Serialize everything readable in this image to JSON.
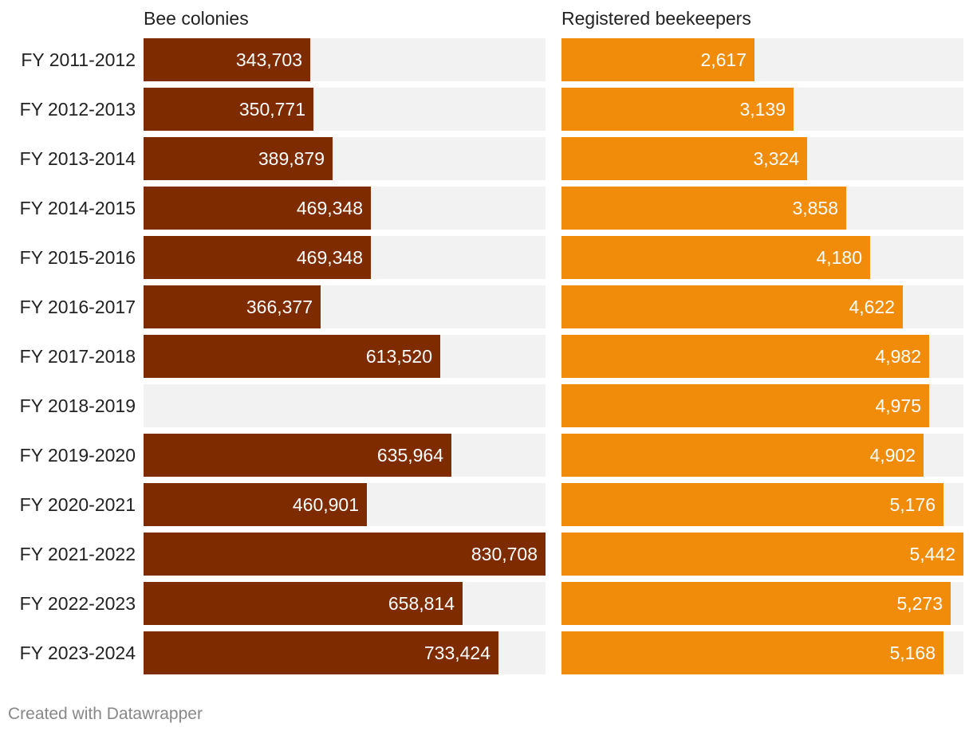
{
  "chart_data": {
    "type": "bar",
    "orientation": "horizontal",
    "layout": "small-multiples",
    "categories": [
      "FY 2011-2012",
      "FY 2012-2013",
      "FY 2013-2014",
      "FY 2014-2015",
      "FY 2015-2016",
      "FY 2016-2017",
      "FY 2017-2018",
      "FY 2018-2019",
      "FY 2019-2020",
      "FY 2020-2021",
      "FY 2021-2022",
      "FY 2022-2023",
      "FY 2023-2024"
    ],
    "series": [
      {
        "name": "Bee colonies",
        "color": "#7f2b00",
        "values": [
          343703,
          350771,
          389879,
          469348,
          469348,
          366377,
          613520,
          null,
          635964,
          460901,
          830708,
          658814,
          733424
        ],
        "labels": [
          "343,703",
          "350,771",
          "389,879",
          "469,348",
          "469,348",
          "366,377",
          "613,520",
          "",
          "635,964",
          "460,901",
          "830,708",
          "658,814",
          "733,424"
        ],
        "xlim": [
          0,
          830708
        ]
      },
      {
        "name": "Registered beekeepers",
        "color": "#f08c0a",
        "values": [
          2617,
          3139,
          3324,
          3858,
          4180,
          4622,
          4982,
          4975,
          4902,
          5176,
          5442,
          5273,
          5168
        ],
        "labels": [
          "2,617",
          "3,139",
          "3,324",
          "3,858",
          "4,180",
          "4,622",
          "4,982",
          "4,975",
          "4,902",
          "5,176",
          "5,442",
          "5,273",
          "5,168"
        ],
        "xlim": [
          0,
          5442
        ]
      }
    ],
    "title": "",
    "xlabel": "",
    "ylabel": "",
    "grid": false,
    "track_color": "#f2f2f2"
  },
  "footer": "Created with Datawrapper"
}
